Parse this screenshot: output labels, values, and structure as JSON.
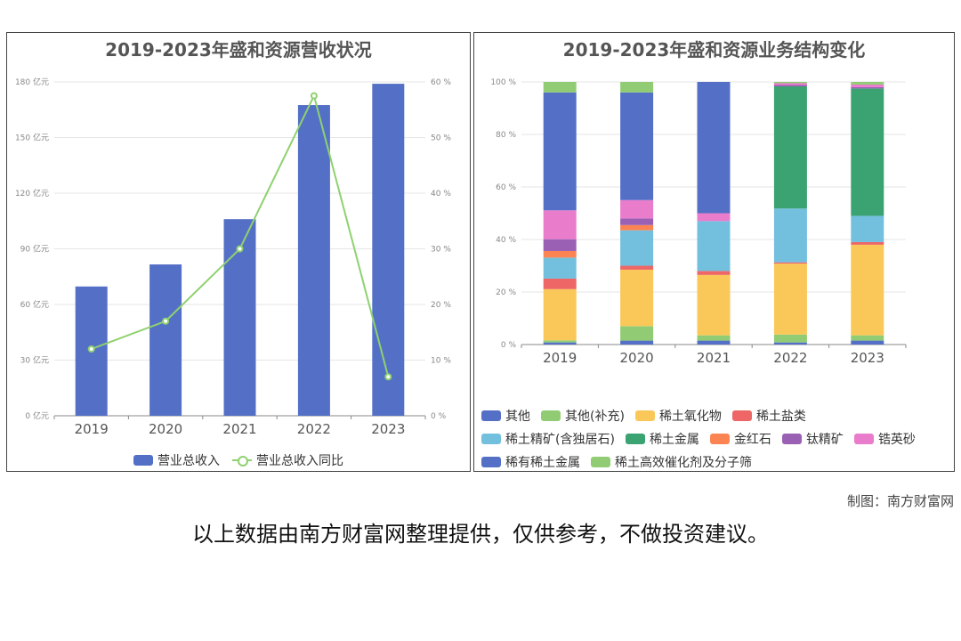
{
  "credit": "制图：南方财富网",
  "disclaimer": "以上数据由南方财富网整理提供，仅供参考，不做投资建议。",
  "chart_data": [
    {
      "type": "bar",
      "title": "2019-2023年盛和资源营收状况",
      "categories": [
        "2019",
        "2020",
        "2021",
        "2022",
        "2023"
      ],
      "y_ticks": [
        "0 亿元",
        "30 亿元",
        "60 亿元",
        "90 亿元",
        "120 亿元",
        "150 亿元",
        "180 亿元"
      ],
      "y2_ticks": [
        "0 %",
        "10 %",
        "20 %",
        "30 %",
        "40 %",
        "50 %",
        "60 %"
      ],
      "ylim": [
        0,
        180
      ],
      "y2lim": [
        0,
        60
      ],
      "grid": true,
      "legend_position": "bottom",
      "series": [
        {
          "name": "营业总收入",
          "type": "bar",
          "axis": "left",
          "color": "#5470c6",
          "values": [
            69.7,
            81.6,
            106,
            167.5,
            179
          ]
        },
        {
          "name": "营业总收入同比",
          "type": "line",
          "axis": "right",
          "color": "#8fd16f",
          "values": [
            12.0,
            17.0,
            30.0,
            57.5,
            7.0
          ]
        }
      ]
    },
    {
      "type": "bar",
      "stacked": true,
      "title": "2019-2023年盛和资源业务结构变化",
      "categories": [
        "2019",
        "2020",
        "2021",
        "2022",
        "2023"
      ],
      "y_ticks": [
        "0 %",
        "20 %",
        "40 %",
        "60 %",
        "80 %",
        "100 %"
      ],
      "ylim": [
        0,
        100
      ],
      "grid": true,
      "legend_position": "bottom",
      "series": [
        {
          "name": "其他",
          "color": "#5470c6",
          "values": [
            0.8,
            1.5,
            1.5,
            0.8,
            1.5
          ]
        },
        {
          "name": "其他(补充)",
          "color": "#91cc75",
          "values": [
            0.8,
            5.5,
            2.0,
            3.0,
            2.0
          ]
        },
        {
          "name": "稀土氧化物",
          "color": "#fac858",
          "values": [
            19.5,
            21.5,
            23.0,
            27.0,
            34.5
          ]
        },
        {
          "name": "稀土盐类",
          "color": "#ee6666",
          "values": [
            4.0,
            1.5,
            1.5,
            0.5,
            1.0
          ]
        },
        {
          "name": "稀土精矿(含独居石)",
          "color": "#73c0de",
          "values": [
            8.0,
            13.5,
            19.0,
            20.5,
            10.0
          ]
        },
        {
          "name": "稀土金属",
          "color": "#3ba272",
          "values": [
            0,
            0,
            0,
            46.5,
            48.5
          ]
        },
        {
          "name": "金红石",
          "color": "#fc8452",
          "values": [
            2.5,
            2.0,
            0,
            0,
            0
          ]
        },
        {
          "name": "钛精矿",
          "color": "#9a60b4",
          "values": [
            4.5,
            2.5,
            0,
            0.5,
            0.5
          ]
        },
        {
          "name": "锆英砂",
          "color": "#ea7ccc",
          "values": [
            11.0,
            7.0,
            3.0,
            0.7,
            1.0
          ]
        },
        {
          "name": "稀有稀土金属",
          "color": "#5470c6",
          "values": [
            44.9,
            41.0,
            50.0,
            0,
            0
          ]
        },
        {
          "name": "稀土高效催化剂及分子筛",
          "color": "#91cc75",
          "values": [
            4.0,
            4.0,
            0,
            0.5,
            1.0
          ]
        }
      ]
    }
  ]
}
